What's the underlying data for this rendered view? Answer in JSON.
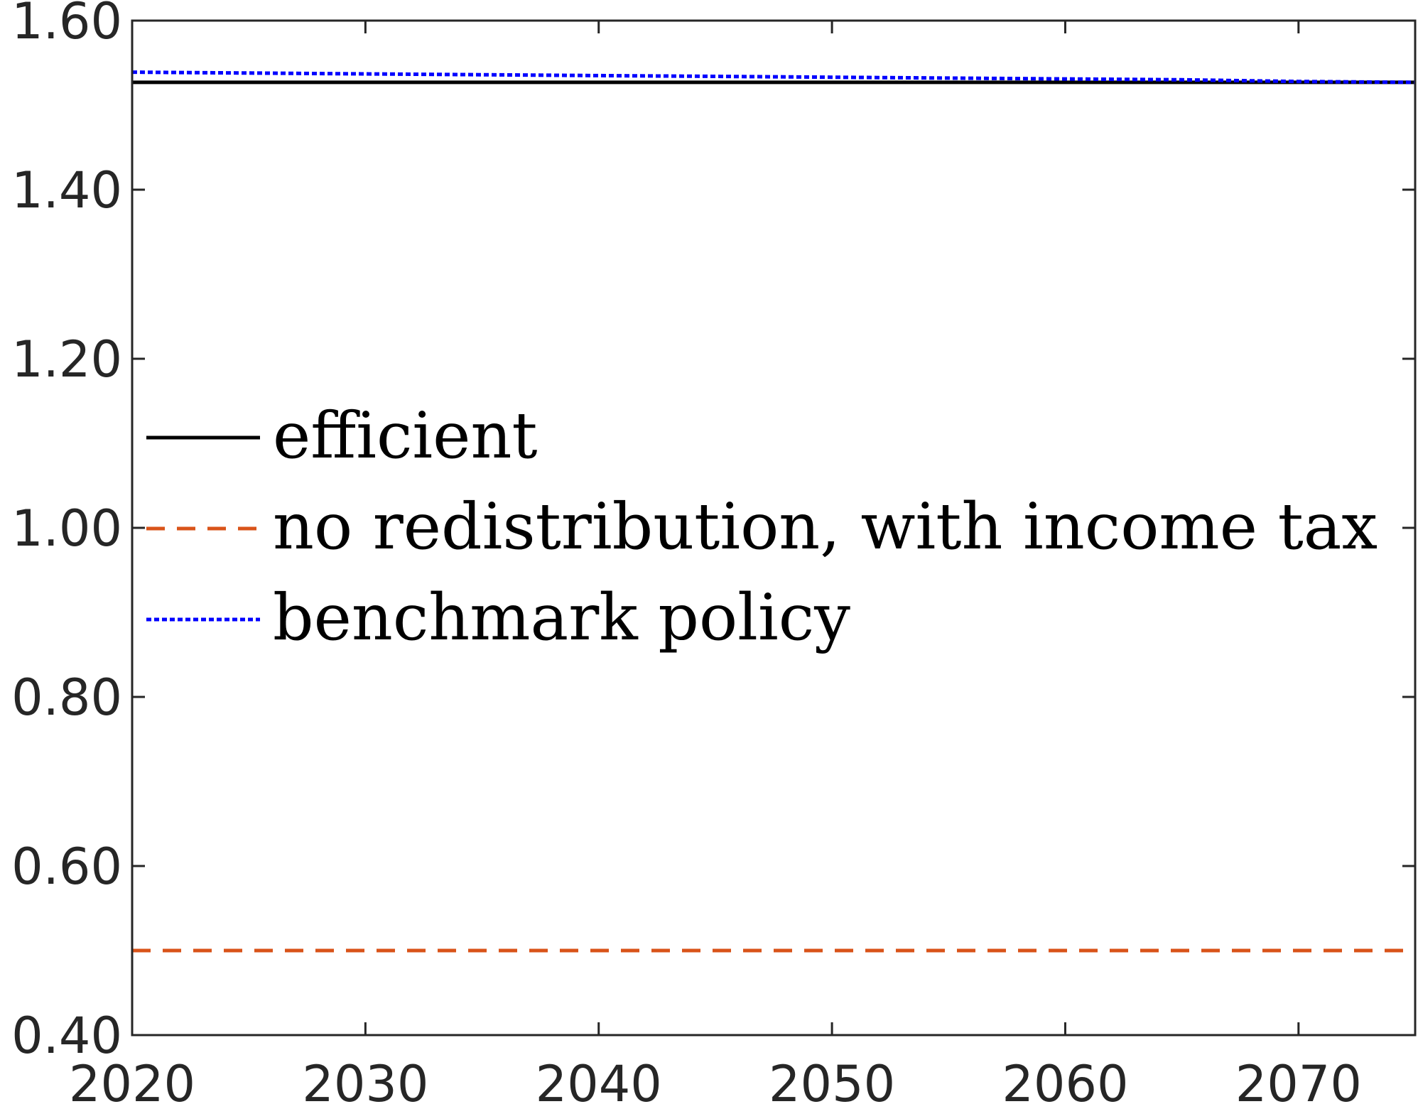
{
  "chart_data": {
    "type": "line",
    "title": "",
    "xlabel": "",
    "ylabel": "",
    "xlim": [
      2020,
      2075
    ],
    "ylim": [
      0.4,
      1.6
    ],
    "x_ticks": [
      2020,
      2030,
      2040,
      2050,
      2060,
      2070
    ],
    "x_tick_labels": [
      "2020",
      "2030",
      "2040",
      "2050",
      "2060",
      "2070"
    ],
    "y_ticks": [
      0.4,
      0.6,
      0.8,
      1.0,
      1.2,
      1.4,
      1.6
    ],
    "y_tick_labels": [
      "0.40",
      "0.60",
      "0.80",
      "1.00",
      "1.20",
      "1.40",
      "1.60"
    ],
    "grid": false,
    "legend_position": "center-left",
    "series": [
      {
        "name": "efficient",
        "color": "#000000",
        "style": "solid",
        "x": [
          2020,
          2030,
          2040,
          2050,
          2060,
          2070,
          2075
        ],
        "y": [
          1.527,
          1.527,
          1.527,
          1.527,
          1.527,
          1.527,
          1.527
        ]
      },
      {
        "name": "no redistribution, with income tax",
        "color": "#D95319",
        "style": "dashed",
        "x": [
          2020,
          2030,
          2040,
          2050,
          2060,
          2070,
          2075
        ],
        "y": [
          0.5,
          0.5,
          0.5,
          0.5,
          0.5,
          0.5,
          0.5
        ]
      },
      {
        "name": "benchmark policy",
        "color": "#0000FF",
        "style": "dotted",
        "x": [
          2020,
          2025,
          2030,
          2035,
          2040,
          2045,
          2050,
          2055,
          2060,
          2065,
          2070,
          2075
        ],
        "y": [
          1.539,
          1.538,
          1.537,
          1.536,
          1.535,
          1.534,
          1.533,
          1.532,
          1.531,
          1.53,
          1.528,
          1.527
        ]
      }
    ]
  }
}
